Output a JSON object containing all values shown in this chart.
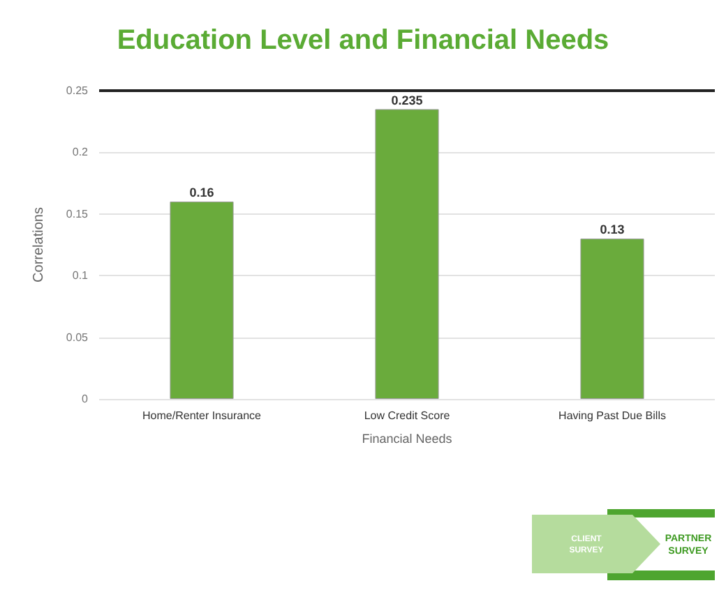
{
  "chart_data": {
    "type": "bar",
    "title": "Education Level and Financial Needs",
    "xlabel": "Financial Needs",
    "ylabel": "Correlations",
    "categories": [
      "Home/Renter Insurance",
      "Low Credit Score",
      "Having Past Due Bills"
    ],
    "values": [
      0.16,
      0.235,
      0.13
    ],
    "color": "#6aab3c",
    "data_labels": true,
    "ylim": [
      0,
      0.25
    ],
    "yticks": [
      0,
      0.05,
      0.1,
      0.15,
      0.2,
      0.25
    ],
    "grid": "y",
    "ref_lines": [
      {
        "axis": "y",
        "value": 0.25,
        "color": "#222222"
      }
    ],
    "annotations": [
      "CLIENT SURVEY",
      "PARTNER SURVEY"
    ]
  }
}
